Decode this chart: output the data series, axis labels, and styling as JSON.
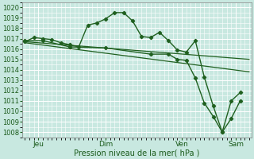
{
  "xlabel": "Pression niveau de la mer( hPa )",
  "ylim": [
    1007.5,
    1020.5
  ],
  "yticks": [
    1008,
    1009,
    1010,
    1011,
    1012,
    1013,
    1014,
    1015,
    1016,
    1017,
    1018,
    1019,
    1020
  ],
  "bg_color": "#c8e8e0",
  "grid_color": "#ffffff",
  "line_color": "#206020",
  "xlim": [
    -0.3,
    25.3
  ],
  "day_lines": [
    1.5,
    9.0,
    17.5,
    23.5
  ],
  "xtick_positions": [
    1.5,
    9.0,
    17.5,
    23.5
  ],
  "xtick_labels": [
    "Jeu",
    "Dim",
    "Ven",
    "Sam"
  ],
  "series_main_x": [
    0,
    1,
    2,
    3,
    4,
    5,
    6,
    7,
    8,
    9,
    10,
    11,
    12,
    13,
    14,
    15,
    16,
    17,
    18,
    19,
    20,
    21,
    22,
    23,
    24
  ],
  "series_main_y": [
    1016.7,
    1017.1,
    1017.0,
    1016.9,
    1016.6,
    1016.4,
    1016.2,
    1018.3,
    1018.5,
    1018.9,
    1019.5,
    1019.5,
    1018.7,
    1017.2,
    1017.1,
    1017.6,
    1016.8,
    1015.9,
    1015.7,
    1016.8,
    1013.3,
    1010.5,
    1008.0,
    1009.3,
    1011.0
  ],
  "series_main2_x": [
    0,
    2,
    5,
    9,
    14,
    16,
    17,
    18,
    19,
    20,
    21,
    22,
    23,
    24
  ],
  "series_main2_y": [
    1016.8,
    1016.8,
    1016.2,
    1016.1,
    1015.5,
    1015.5,
    1015.0,
    1014.9,
    1013.2,
    1010.8,
    1009.5,
    1008.0,
    1011.0,
    1011.8
  ],
  "trend1_x": [
    0,
    25
  ],
  "trend1_y": [
    1016.7,
    1015.0
  ],
  "trend2_x": [
    0,
    25
  ],
  "trend2_y": [
    1016.6,
    1013.8
  ]
}
